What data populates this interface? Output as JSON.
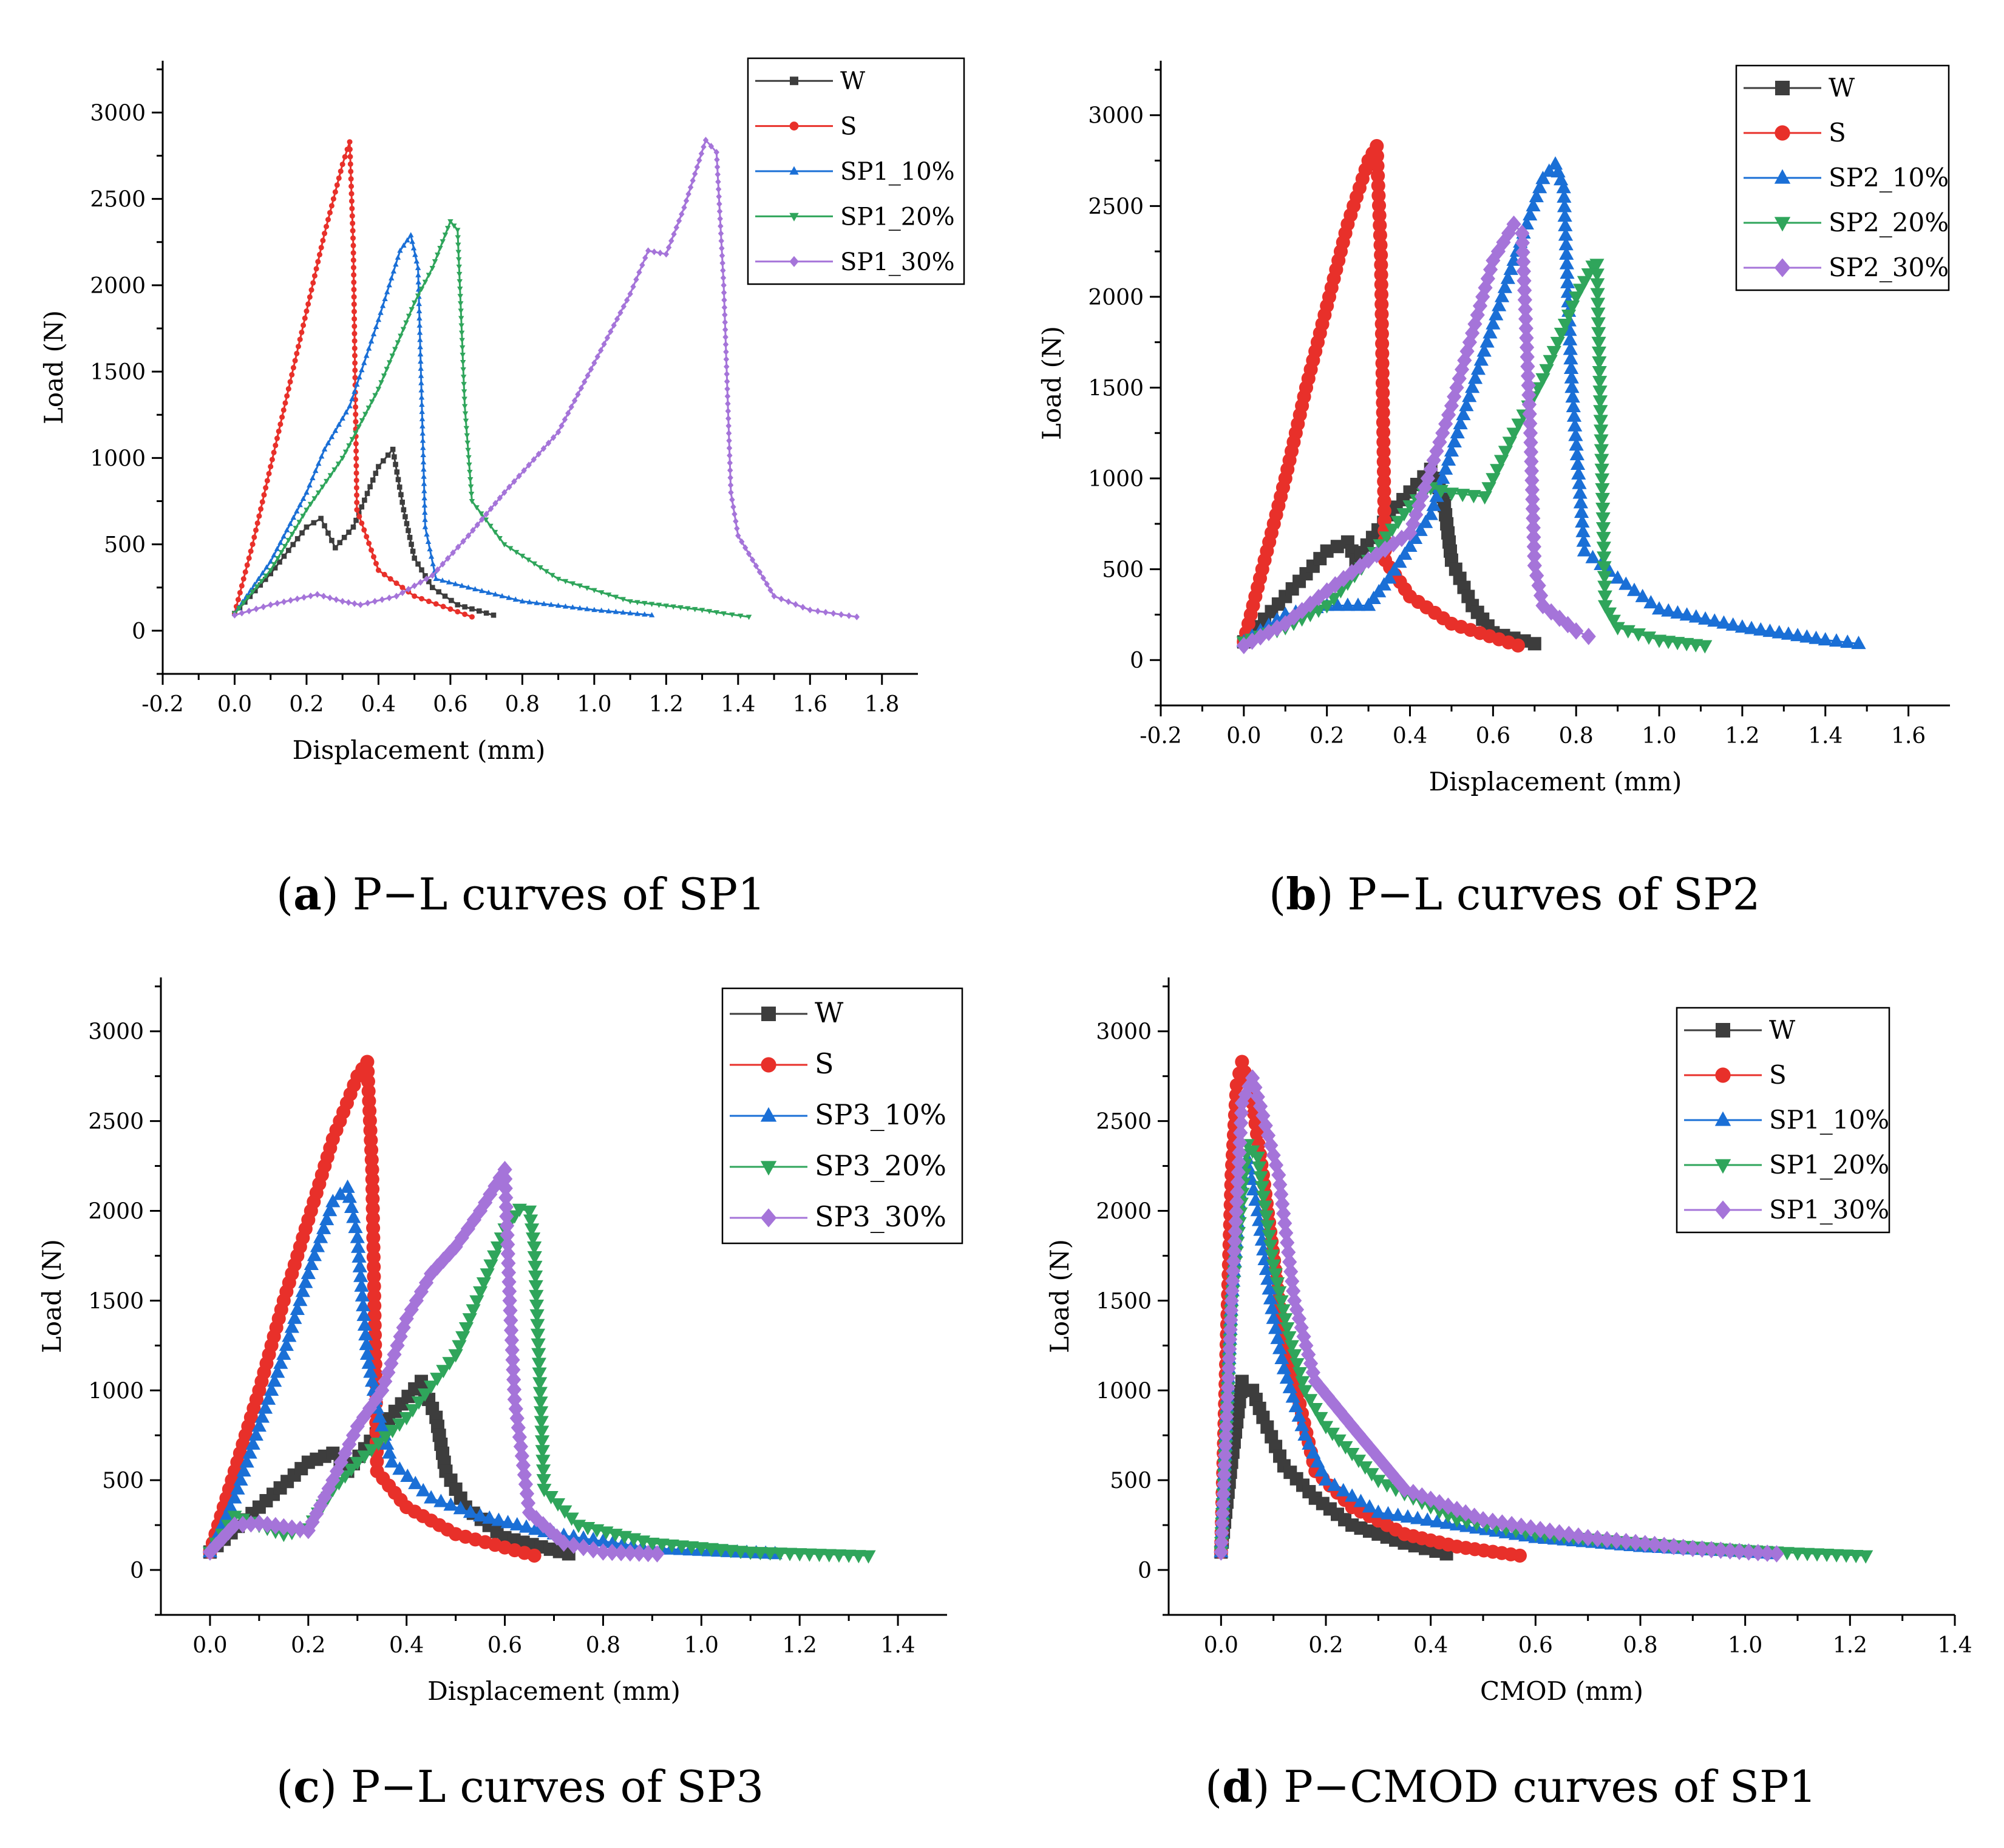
{
  "colors": {
    "W": "#3d3d3d",
    "S": "#e8302a",
    "SP_10": "#1a6fd6",
    "SP_20": "#2fa55b",
    "SP_30": "#a574d9"
  },
  "captions": [
    {
      "letter": "a",
      "text": " P−L curves of SP1"
    },
    {
      "letter": "b",
      "text": " P−L curves of SP2"
    },
    {
      "letter": "c",
      "text": " P−L curves of SP3"
    },
    {
      "letter": "d",
      "text": " P−CMOD curves of SP1"
    }
  ],
  "chart_data": [
    {
      "type": "line",
      "panel": "a",
      "xlabel": "Displacement  (mm)",
      "ylabel": "Load (N)",
      "xlim": [
        -0.2,
        1.9
      ],
      "ylim": [
        -250,
        3300
      ],
      "xticks": [
        -0.2,
        0.0,
        0.2,
        0.4,
        0.6,
        0.8,
        1.0,
        1.2,
        1.4,
        1.6,
        1.8
      ],
      "yticks": [
        0,
        500,
        1000,
        1500,
        2000,
        2500,
        3000
      ],
      "legend_position": "top-right",
      "series": [
        {
          "name": "W",
          "color_key": "W",
          "marker": "square",
          "size": "small",
          "x": [
            0,
            0.1,
            0.2,
            0.24,
            0.28,
            0.33,
            0.4,
            0.44,
            0.47,
            0.5,
            0.55,
            0.62,
            0.72
          ],
          "y": [
            100,
            330,
            600,
            650,
            480,
            600,
            950,
            1050,
            700,
            420,
            250,
            150,
            90
          ]
        },
        {
          "name": "S",
          "color_key": "S",
          "marker": "circle",
          "size": "small",
          "x": [
            0,
            0.05,
            0.1,
            0.15,
            0.2,
            0.25,
            0.3,
            0.32,
            0.33,
            0.34,
            0.4,
            0.5,
            0.66
          ],
          "y": [
            100,
            500,
            950,
            1400,
            1850,
            2300,
            2700,
            2830,
            2230,
            700,
            350,
            200,
            80
          ]
        },
        {
          "name": "SP1_10%",
          "color_key": "SP_10",
          "marker": "triangle-up",
          "size": "small",
          "x": [
            0,
            0.1,
            0.2,
            0.25,
            0.32,
            0.4,
            0.46,
            0.49,
            0.51,
            0.53,
            0.56,
            0.65,
            0.8,
            1.0,
            1.16
          ],
          "y": [
            100,
            400,
            800,
            1050,
            1300,
            1800,
            2200,
            2290,
            2100,
            600,
            300,
            250,
            170,
            120,
            90
          ]
        },
        {
          "name": "SP1_20%",
          "color_key": "SP_20",
          "marker": "triangle-down",
          "size": "small",
          "x": [
            0,
            0.1,
            0.2,
            0.3,
            0.4,
            0.5,
            0.55,
            0.6,
            0.62,
            0.64,
            0.66,
            0.75,
            0.9,
            1.1,
            1.3,
            1.36,
            1.43
          ],
          "y": [
            100,
            350,
            700,
            1000,
            1400,
            1900,
            2100,
            2370,
            2320,
            1300,
            750,
            500,
            300,
            170,
            120,
            100,
            80
          ]
        },
        {
          "name": "SP1_30%",
          "color_key": "SP_30",
          "marker": "diamond",
          "size": "small",
          "x": [
            0,
            0.1,
            0.23,
            0.3,
            0.35,
            0.45,
            0.55,
            0.65,
            0.75,
            0.9,
            1.0,
            1.1,
            1.15,
            1.2,
            1.25,
            1.31,
            1.34,
            1.36,
            1.38,
            1.4,
            1.5,
            1.6,
            1.73
          ],
          "y": [
            90,
            150,
            210,
            170,
            150,
            200,
            320,
            550,
            800,
            1150,
            1550,
            1950,
            2200,
            2180,
            2450,
            2840,
            2770,
            2000,
            800,
            550,
            200,
            120,
            80
          ]
        }
      ]
    },
    {
      "type": "line",
      "panel": "b",
      "xlabel": "Displacement (mm)",
      "ylabel": "Load (N)",
      "xlim": [
        -0.2,
        1.7
      ],
      "ylim": [
        -250,
        3300
      ],
      "xticks": [
        -0.2,
        0.0,
        0.2,
        0.4,
        0.6,
        0.8,
        1.0,
        1.2,
        1.4,
        1.6
      ],
      "yticks": [
        0,
        500,
        1000,
        1500,
        2000,
        2500,
        3000
      ],
      "legend_position": "top-right",
      "series": [
        {
          "name": "W",
          "color_key": "W",
          "marker": "square",
          "size": "large",
          "x": [
            0,
            0.1,
            0.2,
            0.25,
            0.27,
            0.35,
            0.45,
            0.48,
            0.5,
            0.55,
            0.6,
            0.7
          ],
          "y": [
            100,
            350,
            600,
            650,
            550,
            800,
            1050,
            900,
            550,
            300,
            150,
            90
          ]
        },
        {
          "name": "S",
          "color_key": "S",
          "marker": "circle",
          "size": "large",
          "x": [
            0,
            0.05,
            0.1,
            0.15,
            0.2,
            0.25,
            0.3,
            0.32,
            0.33,
            0.34,
            0.4,
            0.5,
            0.66
          ],
          "y": [
            100,
            550,
            1000,
            1500,
            1950,
            2400,
            2750,
            2830,
            2230,
            550,
            350,
            200,
            80
          ]
        },
        {
          "name": "SP2_10%",
          "color_key": "SP_10",
          "marker": "triangle-up",
          "size": "large",
          "x": [
            0,
            0.1,
            0.2,
            0.3,
            0.35,
            0.45,
            0.55,
            0.65,
            0.72,
            0.75,
            0.77,
            0.79,
            0.82,
            0.9,
            1.0,
            1.2,
            1.4,
            1.48
          ],
          "y": [
            100,
            250,
            300,
            300,
            450,
            800,
            1500,
            2200,
            2650,
            2730,
            2600,
            1500,
            600,
            450,
            280,
            180,
            110,
            90
          ]
        },
        {
          "name": "SP2_20%",
          "color_key": "SP_20",
          "marker": "triangle-down",
          "size": "large",
          "x": [
            0,
            0.1,
            0.2,
            0.3,
            0.4,
            0.45,
            0.5,
            0.58,
            0.65,
            0.72,
            0.8,
            0.84,
            0.85,
            0.87,
            0.9,
            1.0,
            1.11
          ],
          "y": [
            100,
            180,
            300,
            550,
            850,
            950,
            920,
            900,
            1250,
            1550,
            2000,
            2170,
            2180,
            300,
            180,
            110,
            80
          ]
        },
        {
          "name": "SP2_30%",
          "color_key": "SP_30",
          "marker": "diamond",
          "size": "large",
          "x": [
            0,
            0.1,
            0.2,
            0.3,
            0.4,
            0.5,
            0.6,
            0.65,
            0.67,
            0.69,
            0.7,
            0.72,
            0.8,
            0.83
          ],
          "y": [
            80,
            200,
            380,
            550,
            700,
            1400,
            2200,
            2400,
            2350,
            1250,
            520,
            300,
            160,
            130
          ]
        }
      ]
    },
    {
      "type": "line",
      "panel": "c",
      "xlabel": "Displacement (mm)",
      "ylabel": "Load (N)",
      "xlim": [
        -0.1,
        1.5
      ],
      "ylim": [
        -250,
        3300
      ],
      "xticks": [
        0.0,
        0.2,
        0.4,
        0.6,
        0.8,
        1.0,
        1.2,
        1.4
      ],
      "yticks": [
        0,
        500,
        1000,
        1500,
        2000,
        2500,
        3000
      ],
      "legend_position": "top-right",
      "series": [
        {
          "name": "W",
          "color_key": "W",
          "marker": "square",
          "size": "large",
          "x": [
            0,
            0.1,
            0.2,
            0.25,
            0.28,
            0.35,
            0.43,
            0.46,
            0.48,
            0.52,
            0.6,
            0.73
          ],
          "y": [
            100,
            350,
            600,
            650,
            550,
            800,
            1050,
            850,
            550,
            350,
            180,
            90
          ]
        },
        {
          "name": "S",
          "color_key": "S",
          "marker": "circle",
          "size": "large",
          "x": [
            0,
            0.05,
            0.1,
            0.15,
            0.2,
            0.25,
            0.3,
            0.32,
            0.33,
            0.34,
            0.4,
            0.5,
            0.66
          ],
          "y": [
            100,
            550,
            1000,
            1500,
            1950,
            2400,
            2750,
            2830,
            2230,
            550,
            350,
            200,
            80
          ]
        },
        {
          "name": "SP3_10%",
          "color_key": "SP_10",
          "marker": "triangle-up",
          "size": "large",
          "x": [
            0,
            0.05,
            0.1,
            0.15,
            0.2,
            0.25,
            0.28,
            0.3,
            0.32,
            0.34,
            0.37,
            0.45,
            0.55,
            0.7,
            0.9,
            1.15
          ],
          "y": [
            100,
            400,
            800,
            1200,
            1650,
            2050,
            2130,
            1850,
            1200,
            900,
            600,
            400,
            300,
            200,
            120,
            90
          ]
        },
        {
          "name": "SP3_20%",
          "color_key": "SP_20",
          "marker": "triangle-down",
          "size": "large",
          "x": [
            0,
            0.05,
            0.1,
            0.15,
            0.2,
            0.25,
            0.3,
            0.4,
            0.5,
            0.6,
            0.63,
            0.65,
            0.66,
            0.68,
            0.75,
            0.9,
            1.1,
            1.34
          ],
          "y": [
            100,
            300,
            250,
            200,
            230,
            450,
            600,
            850,
            1200,
            1900,
            2010,
            2000,
            1800,
            450,
            250,
            150,
            100,
            80
          ]
        },
        {
          "name": "SP3_30%",
          "color_key": "SP_30",
          "marker": "diamond",
          "size": "large",
          "x": [
            0,
            0.05,
            0.1,
            0.15,
            0.2,
            0.25,
            0.3,
            0.35,
            0.4,
            0.45,
            0.5,
            0.55,
            0.6,
            0.61,
            0.62,
            0.65,
            0.72,
            0.8,
            0.91
          ],
          "y": [
            100,
            250,
            260,
            240,
            220,
            500,
            800,
            1000,
            1400,
            1650,
            1800,
            2000,
            2230,
            1500,
            950,
            320,
            150,
            100,
            90
          ]
        }
      ]
    },
    {
      "type": "line",
      "panel": "d",
      "xlabel": "CMOD (mm)",
      "ylabel": "Load (N)",
      "xlim": [
        -0.1,
        1.4
      ],
      "ylim": [
        -250,
        3300
      ],
      "xticks": [
        0.0,
        0.2,
        0.4,
        0.6,
        0.8,
        1.0,
        1.2,
        1.4
      ],
      "yticks": [
        0,
        500,
        1000,
        1500,
        2000,
        2500,
        3000
      ],
      "legend_position": "top-right",
      "series": [
        {
          "name": "W",
          "color_key": "W",
          "marker": "square",
          "size": "large",
          "x": [
            0,
            0.02,
            0.04,
            0.06,
            0.08,
            0.12,
            0.18,
            0.25,
            0.35,
            0.43
          ],
          "y": [
            100,
            600,
            1050,
            1000,
            850,
            580,
            400,
            250,
            150,
            90
          ]
        },
        {
          "name": "S",
          "color_key": "S",
          "marker": "circle",
          "size": "large",
          "x": [
            0,
            0.01,
            0.02,
            0.03,
            0.04,
            0.06,
            0.08,
            0.12,
            0.18,
            0.25,
            0.35,
            0.45,
            0.57
          ],
          "y": [
            100,
            1200,
            2200,
            2700,
            2830,
            2600,
            2200,
            1300,
            550,
            350,
            200,
            130,
            80
          ]
        },
        {
          "name": "SP1_10%",
          "color_key": "SP_10",
          "marker": "triangle-up",
          "size": "large",
          "x": [
            0,
            0.02,
            0.04,
            0.05,
            0.07,
            0.1,
            0.12,
            0.16,
            0.2,
            0.3,
            0.45,
            0.6,
            0.8,
            1.0,
            1.05
          ],
          "y": [
            100,
            1500,
            2200,
            2290,
            2000,
            1400,
            1120,
            750,
            500,
            320,
            250,
            180,
            130,
            100,
            90
          ]
        },
        {
          "name": "SP1_20%",
          "color_key": "SP_20",
          "marker": "triangle-down",
          "size": "large",
          "x": [
            0,
            0.02,
            0.05,
            0.07,
            0.1,
            0.13,
            0.16,
            0.2,
            0.3,
            0.45,
            0.6,
            0.8,
            1.0,
            1.1,
            1.23
          ],
          "y": [
            100,
            1500,
            2370,
            2300,
            1700,
            1300,
            1000,
            800,
            500,
            280,
            200,
            150,
            110,
            95,
            80
          ]
        },
        {
          "name": "SP1_30%",
          "color_key": "SP_30",
          "marker": "diamond",
          "size": "large",
          "x": [
            0,
            0.02,
            0.04,
            0.06,
            0.08,
            0.11,
            0.14,
            0.18,
            0.25,
            0.35,
            0.5,
            0.7,
            0.9,
            1.06
          ],
          "y": [
            100,
            1500,
            2600,
            2740,
            2530,
            2200,
            1500,
            1050,
            800,
            450,
            280,
            180,
            120,
            90
          ]
        }
      ]
    }
  ]
}
